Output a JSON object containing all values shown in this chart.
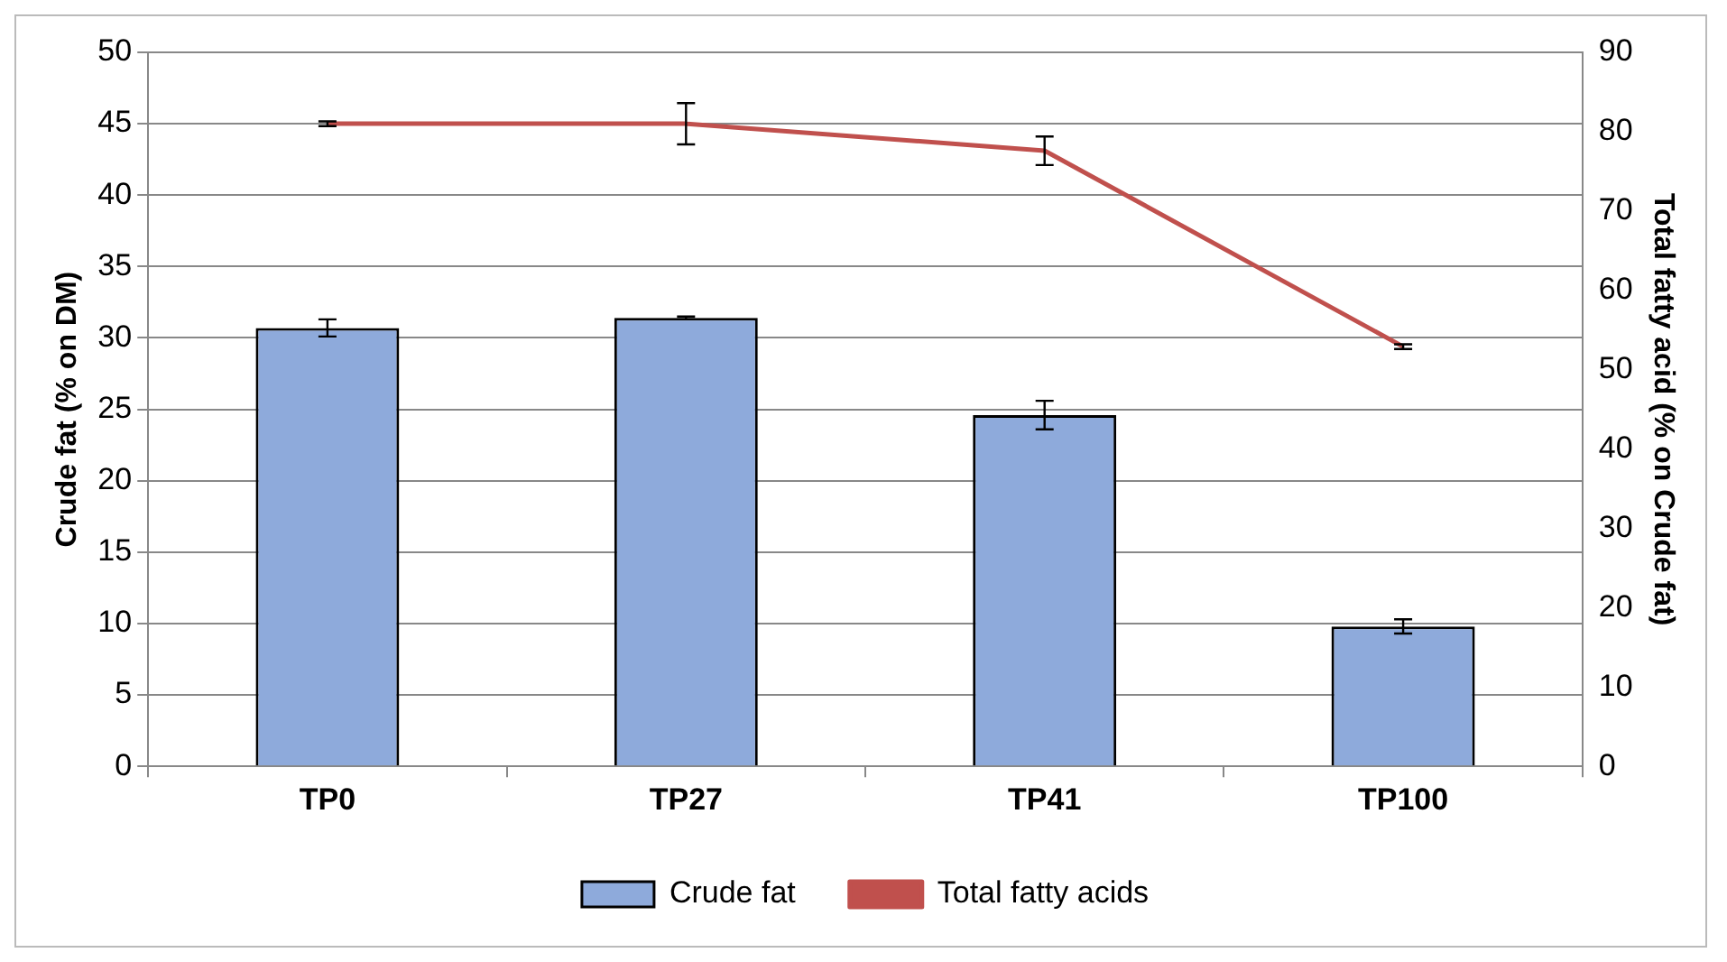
{
  "chart_data": {
    "type": "bar",
    "categories": [
      "TP0",
      "TP27",
      "TP41",
      "TP100"
    ],
    "series": [
      {
        "name": "Crude fat",
        "color": "#8eaadb",
        "values": [
          30.7,
          31.4,
          24.6,
          9.8
        ],
        "errors": [
          0.6,
          0.1,
          1.0,
          0.5
        ]
      },
      {
        "name": "Total fatty acids",
        "type": "line",
        "axis": "y2",
        "color": "#c0504d",
        "values": [
          81,
          81,
          77.6,
          52.9
        ],
        "errors": [
          0.3,
          2.6,
          1.8,
          0.3
        ]
      }
    ],
    "ylabel": "Crude fat (% on DM)",
    "y2label": "Total fatty acid (% on Crude fat)",
    "ylim": [
      0,
      50
    ],
    "yticks": [
      0,
      5,
      10,
      15,
      20,
      25,
      30,
      35,
      40,
      45,
      50
    ],
    "y2lim": [
      0,
      90
    ],
    "y2ticks": [
      0,
      10,
      20,
      30,
      40,
      50,
      60,
      70,
      80,
      90
    ],
    "grid": "y",
    "legend": "bottom",
    "marker": "none",
    "line_style": "solid"
  }
}
